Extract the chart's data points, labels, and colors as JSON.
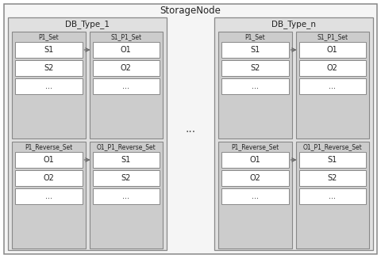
{
  "title": "StorageNode",
  "bg_outer": "#f0f0f0",
  "bg_db": "#e0e0e0",
  "bg_set_top": "#d0d0d0",
  "bg_set_bot": "#d0d0d0",
  "bg_item": "#ffffff",
  "border_outer": "#888888",
  "border_db": "#888888",
  "border_set": "#888888",
  "border_item": "#888888",
  "text_color": "#222222",
  "arrow_color": "#666666",
  "db_labels": [
    "DB_Type_1",
    "DB_Type_n"
  ],
  "top_left_set": "P1_Set",
  "top_right_set": "S1_P1_Set",
  "bot_left_set": "P1_Reverse_Set",
  "bot_right_set": "O1_P1_Reverse_Set",
  "top_left_items": [
    "S1",
    "S2",
    "..."
  ],
  "top_right_items": [
    "O1",
    "O2",
    "..."
  ],
  "bot_left_items": [
    "O1",
    "O2",
    "..."
  ],
  "bot_right_items": [
    "S1",
    "S2",
    "..."
  ],
  "middle_dots": "...",
  "figsize": [
    4.8,
    3.26
  ],
  "dpi": 100
}
